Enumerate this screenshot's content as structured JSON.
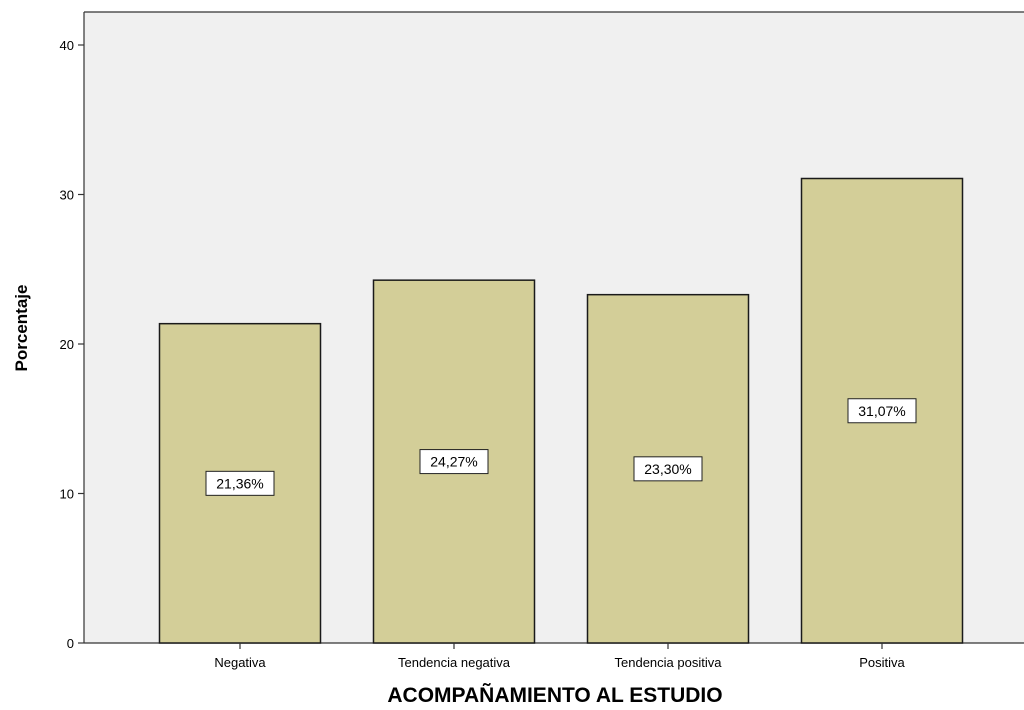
{
  "chart_data": {
    "type": "bar",
    "title": "",
    "xlabel": "ACOMPAÑAMIENTO AL ESTUDIO",
    "ylabel": "Porcentaje",
    "categories": [
      "Negativa",
      "Tendencia negativa",
      "Tendencia positiva",
      "Positiva"
    ],
    "values": [
      21.36,
      24.27,
      23.3,
      31.07
    ],
    "data_labels": [
      "21,36%",
      "24,27%",
      "23,30%",
      "31,07%"
    ],
    "ylim": [
      0,
      42
    ],
    "yticks": [
      0,
      10,
      20,
      30,
      40
    ],
    "ytick_labels": [
      "0",
      "10",
      "20",
      "30",
      "40"
    ],
    "grid": false,
    "legend": "none",
    "colors": {
      "bar_fill": "#D3CE98",
      "bar_stroke": "#1A1A1A",
      "plot_background": "#F0F0F0",
      "label_box": "#FFFFFF"
    }
  }
}
